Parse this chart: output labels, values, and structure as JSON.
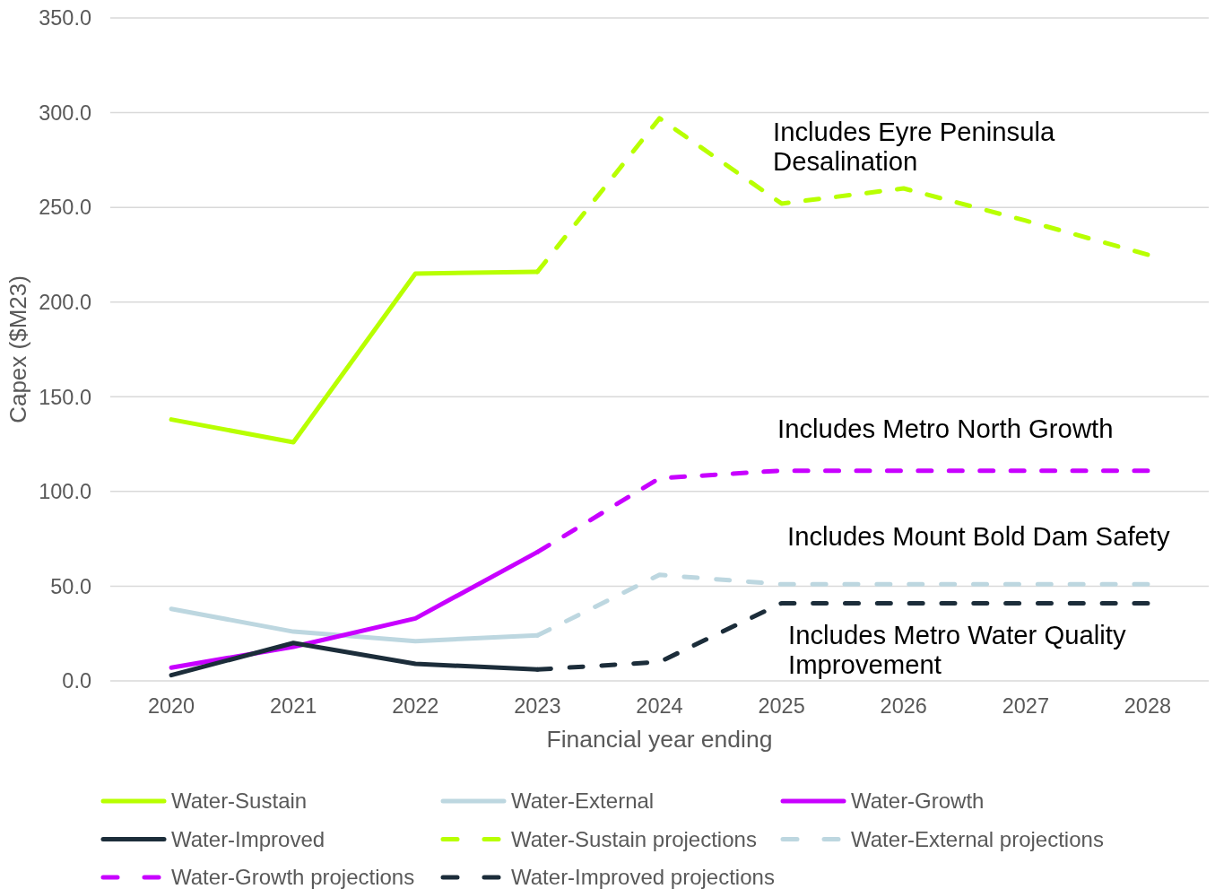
{
  "chart_data": {
    "type": "line",
    "xlabel": "Financial year ending",
    "ylabel": "Capex ($M23)",
    "categories": [
      "2020",
      "2021",
      "2022",
      "2023",
      "2024",
      "2025",
      "2026",
      "2027",
      "2028"
    ],
    "series": [
      {
        "name": "Water-Sustain",
        "color": "#b8ff00",
        "line_style": "solid",
        "values": [
          138,
          126,
          215,
          216,
          null,
          null,
          null,
          null,
          null
        ]
      },
      {
        "name": "Water-External",
        "color": "#bdd7e0",
        "line_style": "solid",
        "values": [
          38,
          26,
          21,
          24,
          null,
          null,
          null,
          null,
          null
        ]
      },
      {
        "name": "Water-Growth",
        "color": "#c800ff",
        "line_style": "solid",
        "values": [
          7,
          18,
          33,
          68,
          null,
          null,
          null,
          null,
          null
        ]
      },
      {
        "name": "Water-Improved",
        "color": "#1c2d3a",
        "line_style": "solid",
        "values": [
          3,
          20,
          9,
          6,
          null,
          null,
          null,
          null,
          null
        ]
      },
      {
        "name": "Water-Sustain projections",
        "color": "#b8ff00",
        "line_style": "dashed",
        "values": [
          null,
          null,
          null,
          216,
          297,
          252,
          260,
          243,
          225
        ]
      },
      {
        "name": "Water-External projections",
        "color": "#bdd7e0",
        "line_style": "dashed",
        "values": [
          null,
          null,
          null,
          24,
          56,
          51,
          51,
          51,
          51
        ]
      },
      {
        "name": "Water-Growth projections",
        "color": "#c800ff",
        "line_style": "dashed",
        "values": [
          null,
          null,
          null,
          68,
          107,
          111,
          111,
          111,
          111
        ]
      },
      {
        "name": "Water-Improved projections",
        "color": "#1c2d3a",
        "line_style": "dashed",
        "values": [
          null,
          null,
          null,
          6,
          10,
          41,
          41,
          41,
          41
        ]
      }
    ],
    "ylim": [
      0,
      350
    ],
    "yticks": [
      {
        "value": 0,
        "label": "0.0"
      },
      {
        "value": 50,
        "label": "50.0"
      },
      {
        "value": 100,
        "label": "100.0"
      },
      {
        "value": 150,
        "label": "150.0"
      },
      {
        "value": 200,
        "label": "200.0"
      },
      {
        "value": 250,
        "label": "250.0"
      },
      {
        "value": 300,
        "label": "300.0"
      },
      {
        "value": 350,
        "label": "350.0"
      }
    ],
    "grid": "y",
    "legend": "bottom",
    "annotations": [
      "Includes Eyre Peninsula Desalination",
      "Includes Metro North Growth",
      "Includes Mount Bold Dam Safety",
      "Includes Metro Water Quality Improvement"
    ]
  }
}
